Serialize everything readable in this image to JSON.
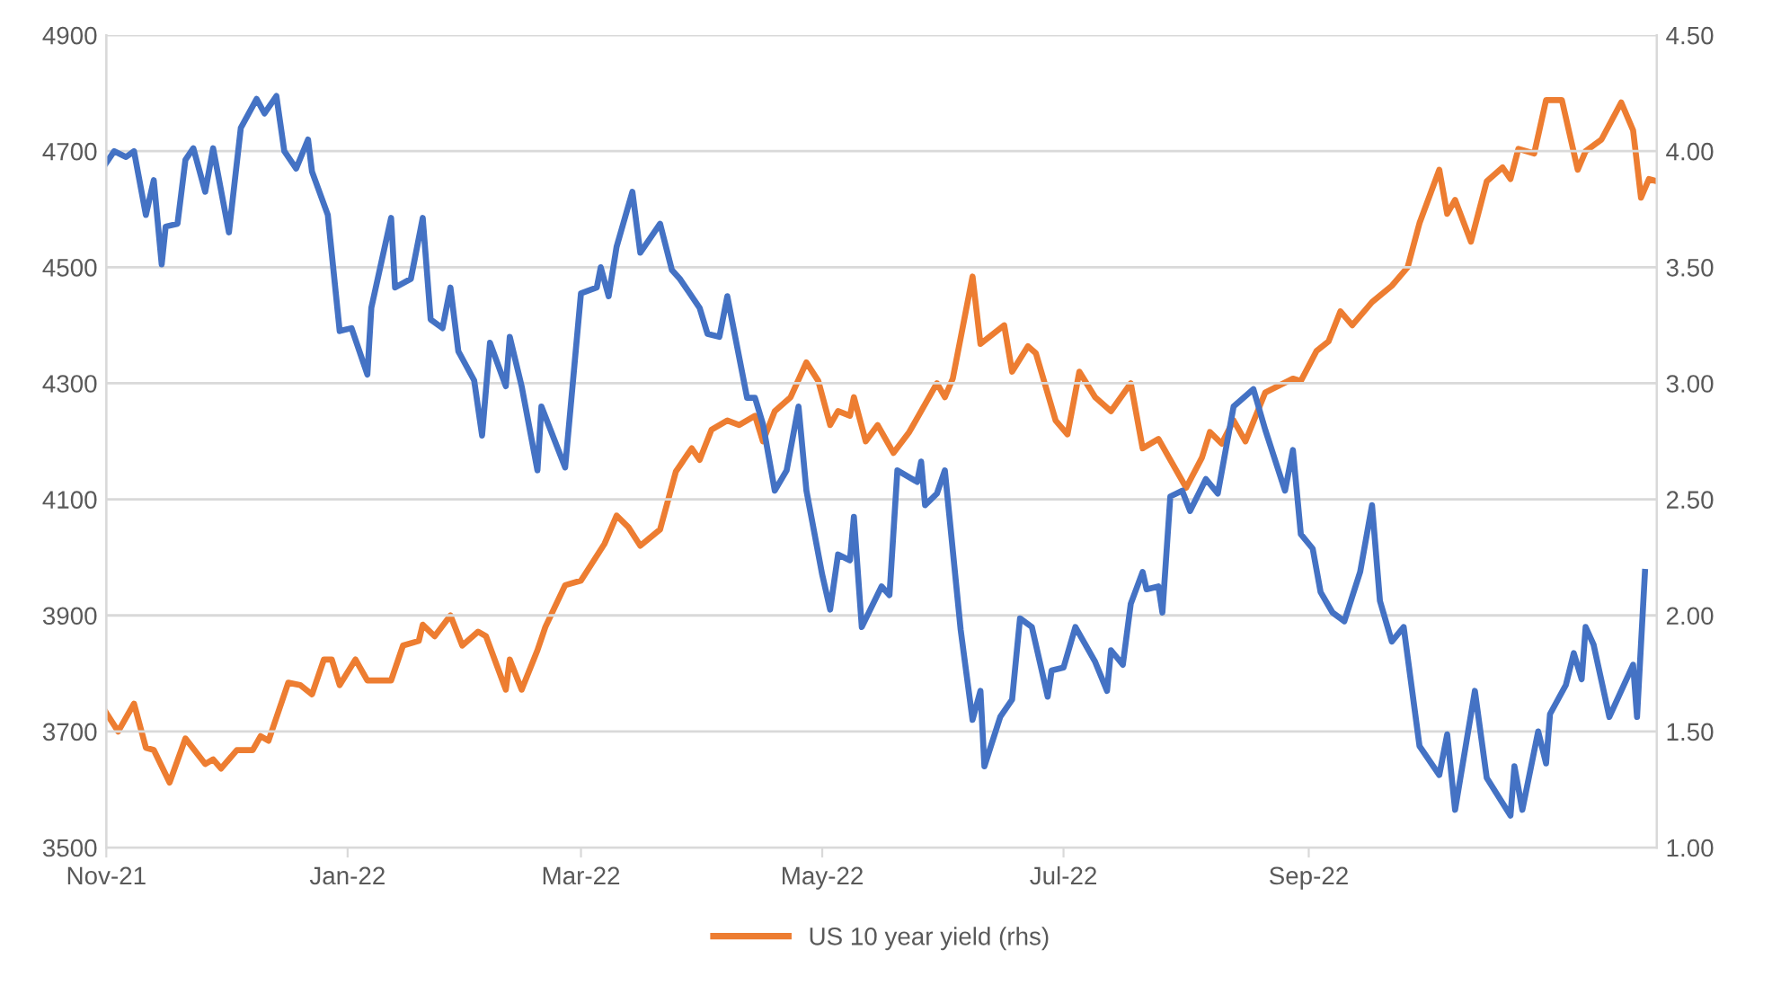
{
  "chart_data": {
    "type": "line",
    "legend": "bottom",
    "grid": "y",
    "line_style": "solid",
    "marker": "none",
    "xlim": [
      "2021-11-01",
      "2022-11-28"
    ],
    "xticks": [
      {
        "value": "2021-11-01",
        "label": "Nov-21"
      },
      {
        "value": "2022-01-01",
        "label": "Jan-22"
      },
      {
        "value": "2022-03-01",
        "label": "Mar-22"
      },
      {
        "value": "2022-05-01",
        "label": "May-22"
      },
      {
        "value": "2022-07-01",
        "label": "Jul-22"
      },
      {
        "value": "2022-09-01",
        "label": "Sep-22"
      }
    ],
    "ylim": [
      3500,
      4900
    ],
    "yticks": [
      3500,
      3700,
      3900,
      4100,
      4300,
      4500,
      4700,
      4900
    ],
    "y2lim": [
      1,
      4.5
    ],
    "y2ticks": [
      {
        "value": 1,
        "label": "1.00"
      },
      {
        "value": 1.5,
        "label": "1.50"
      },
      {
        "value": 2,
        "label": "2.00"
      },
      {
        "value": 2.5,
        "label": "2.50"
      },
      {
        "value": 3,
        "label": "3.00"
      },
      {
        "value": 3.5,
        "label": "3.50"
      },
      {
        "value": 4,
        "label": "4.00"
      },
      {
        "value": 4.5,
        "label": "4.50"
      }
    ],
    "series": [
      {
        "color": "#4472c4",
        "x": [
          "2021-11-01",
          "2021-11-03",
          "2021-11-06",
          "2021-11-08",
          "2021-11-11",
          "2021-11-13",
          "2021-11-15",
          "2021-11-16",
          "2021-11-19",
          "2021-11-21",
          "2021-11-23",
          "2021-11-26",
          "2021-11-28",
          "2021-12-02",
          "2021-12-05",
          "2021-12-09",
          "2021-12-11",
          "2021-12-14",
          "2021-12-16",
          "2021-12-19",
          "2021-12-22",
          "2021-12-23",
          "2021-12-27",
          "2021-12-30",
          "2022-01-02",
          "2022-01-06",
          "2022-01-07",
          "2022-01-12",
          "2022-01-13",
          "2022-01-17",
          "2022-01-20",
          "2022-01-22",
          "2022-01-25",
          "2022-01-27",
          "2022-01-29",
          "2022-02-02",
          "2022-02-04",
          "2022-02-06",
          "2022-02-10",
          "2022-02-11",
          "2022-02-14",
          "2022-02-18",
          "2022-02-19",
          "2022-02-25",
          "2022-03-01",
          "2022-03-05",
          "2022-03-06",
          "2022-03-08",
          "2022-03-10",
          "2022-03-14",
          "2022-03-16",
          "2022-03-21",
          "2022-03-24",
          "2022-03-26",
          "2022-03-31",
          "2022-04-02",
          "2022-04-05",
          "2022-04-07",
          "2022-04-12",
          "2022-04-14",
          "2022-04-16",
          "2022-04-19",
          "2022-04-22",
          "2022-04-25",
          "2022-04-27",
          "2022-05-01",
          "2022-05-03",
          "2022-05-05",
          "2022-05-08",
          "2022-05-09",
          "2022-05-11",
          "2022-05-16",
          "2022-05-18",
          "2022-05-20",
          "2022-05-25",
          "2022-05-26",
          "2022-05-27",
          "2022-05-30",
          "2022-06-01",
          "2022-06-05",
          "2022-06-08",
          "2022-06-10",
          "2022-06-11",
          "2022-06-15",
          "2022-06-18",
          "2022-06-20",
          "2022-06-23",
          "2022-06-27",
          "2022-06-28",
          "2022-07-01",
          "2022-07-04",
          "2022-07-09",
          "2022-07-12",
          "2022-07-13",
          "2022-07-16",
          "2022-07-18",
          "2022-07-21",
          "2022-07-22",
          "2022-07-25",
          "2022-07-26",
          "2022-07-28",
          "2022-07-31",
          "2022-08-02",
          "2022-08-06",
          "2022-08-09",
          "2022-08-13",
          "2022-08-18",
          "2022-08-21",
          "2022-08-26",
          "2022-08-28",
          "2022-08-30",
          "2022-09-02",
          "2022-09-04",
          "2022-09-07",
          "2022-09-10",
          "2022-09-14",
          "2022-09-17",
          "2022-09-19",
          "2022-09-22",
          "2022-09-25",
          "2022-09-29",
          "2022-10-04",
          "2022-10-06",
          "2022-10-08",
          "2022-10-13",
          "2022-10-16",
          "2022-10-22",
          "2022-10-23",
          "2022-10-25",
          "2022-10-29",
          "2022-10-31",
          "2022-11-01",
          "2022-11-05",
          "2022-11-07",
          "2022-11-09",
          "2022-11-10",
          "2022-11-12",
          "2022-11-16",
          "2022-11-21",
          "2022-11-22",
          "2022-11-23",
          "2022-11-25"
        ],
        "values": [
          4680,
          4700,
          4690,
          4700,
          4590,
          4650,
          4505,
          4570,
          4575,
          4685,
          4705,
          4630,
          4705,
          4560,
          4740,
          4790,
          4765,
          4795,
          4700,
          4670,
          4720,
          4665,
          4590,
          4390,
          4395,
          4315,
          4430,
          4585,
          4465,
          4480,
          4585,
          4410,
          4395,
          4465,
          4355,
          4305,
          4210,
          4370,
          4295,
          4380,
          4295,
          4150,
          4260,
          4155,
          4455,
          4465,
          4500,
          4450,
          4535,
          4630,
          4525,
          4575,
          4495,
          4480,
          4430,
          4385,
          4380,
          4450,
          4275,
          4275,
          4230,
          4115,
          4150,
          4260,
          4115,
          3970,
          3910,
          4005,
          3995,
          4070,
          3880,
          3950,
          3935,
          4150,
          4130,
          4165,
          4090,
          4110,
          4150,
          3875,
          3720,
          3770,
          3640,
          3725,
          3755,
          3895,
          3880,
          3760,
          3805,
          3810,
          3880,
          3820,
          3770,
          3840,
          3815,
          3920,
          3975,
          3945,
          3950,
          3905,
          4105,
          4115,
          4080,
          4135,
          4110,
          4260,
          4290,
          4220,
          4115,
          4185,
          4040,
          4015,
          3940,
          3905,
          3890,
          3975,
          4090,
          3925,
          3855,
          3880,
          3675,
          3625,
          3695,
          3565,
          3770,
          3620,
          3555,
          3640,
          3565,
          3700,
          3645,
          3730,
          3780,
          3835,
          3790,
          3880,
          3850,
          3725,
          3800,
          3815,
          3725,
          3975
        ]
      },
      {
        "name": "US 10 year yield (rhs)",
        "color": "#ed7d31",
        "axis": "y2",
        "x": [
          "2021-11-01",
          "2021-11-04",
          "2021-11-08",
          "2021-11-11",
          "2021-11-13",
          "2021-11-17",
          "2021-11-21",
          "2021-11-26",
          "2021-11-28",
          "2021-11-30",
          "2021-12-04",
          "2021-12-08",
          "2021-12-10",
          "2021-12-12",
          "2021-12-17",
          "2021-12-20",
          "2021-12-23",
          "2021-12-26",
          "2021-12-28",
          "2021-12-30",
          "2022-01-03",
          "2022-01-06",
          "2022-01-12",
          "2022-01-15",
          "2022-01-19",
          "2022-01-20",
          "2022-01-23",
          "2022-01-27",
          "2022-01-30",
          "2022-02-03",
          "2022-02-05",
          "2022-02-10",
          "2022-02-11",
          "2022-02-14",
          "2022-02-18",
          "2022-02-20",
          "2022-02-25",
          "2022-03-01",
          "2022-03-07",
          "2022-03-10",
          "2022-03-13",
          "2022-03-16",
          "2022-03-21",
          "2022-03-25",
          "2022-03-29",
          "2022-03-31",
          "2022-04-03",
          "2022-04-07",
          "2022-04-10",
          "2022-04-14",
          "2022-04-16",
          "2022-04-19",
          "2022-04-23",
          "2022-04-27",
          "2022-04-30",
          "2022-05-03",
          "2022-05-05",
          "2022-05-08",
          "2022-05-09",
          "2022-05-12",
          "2022-05-15",
          "2022-05-19",
          "2022-05-23",
          "2022-05-30",
          "2022-06-01",
          "2022-06-03",
          "2022-06-08",
          "2022-06-10",
          "2022-06-16",
          "2022-06-18",
          "2022-06-22",
          "2022-06-24",
          "2022-06-29",
          "2022-07-02",
          "2022-07-05",
          "2022-07-09",
          "2022-07-13",
          "2022-07-18",
          "2022-07-21",
          "2022-07-25",
          "2022-08-01",
          "2022-08-05",
          "2022-08-07",
          "2022-08-10",
          "2022-08-13",
          "2022-08-16",
          "2022-08-21",
          "2022-08-28",
          "2022-08-30",
          "2022-09-03",
          "2022-09-06",
          "2022-09-09",
          "2022-09-12",
          "2022-09-17",
          "2022-09-22",
          "2022-09-26",
          "2022-09-29",
          "2022-10-04",
          "2022-10-06",
          "2022-10-08",
          "2022-10-12",
          "2022-10-16",
          "2022-10-20",
          "2022-10-22",
          "2022-10-24",
          "2022-10-28",
          "2022-10-31",
          "2022-11-04",
          "2022-11-08",
          "2022-11-10",
          "2022-11-14",
          "2022-11-19",
          "2022-11-22",
          "2022-11-24",
          "2022-11-26",
          "2022-11-28"
        ],
        "values": [
          1.58,
          1.5,
          1.62,
          1.43,
          1.42,
          1.28,
          1.47,
          1.36,
          1.38,
          1.34,
          1.42,
          1.42,
          1.48,
          1.46,
          1.71,
          1.7,
          1.66,
          1.81,
          1.81,
          1.7,
          1.81,
          1.72,
          1.72,
          1.87,
          1.89,
          1.96,
          1.91,
          2.0,
          1.87,
          1.93,
          1.91,
          1.68,
          1.81,
          1.68,
          1.85,
          1.95,
          2.13,
          2.15,
          2.31,
          2.43,
          2.38,
          2.3,
          2.37,
          2.62,
          2.72,
          2.67,
          2.8,
          2.84,
          2.82,
          2.86,
          2.75,
          2.88,
          2.94,
          3.09,
          3.01,
          2.82,
          2.88,
          2.86,
          2.94,
          2.75,
          2.82,
          2.7,
          2.79,
          3.0,
          2.94,
          3.02,
          3.46,
          3.17,
          3.25,
          3.05,
          3.16,
          3.13,
          2.84,
          2.78,
          3.05,
          2.94,
          2.88,
          3.0,
          2.72,
          2.76,
          2.55,
          2.68,
          2.79,
          2.74,
          2.84,
          2.75,
          2.96,
          3.02,
          3.01,
          3.14,
          3.18,
          3.31,
          3.25,
          3.35,
          3.42,
          3.5,
          3.69,
          3.92,
          3.73,
          3.79,
          3.61,
          3.87,
          3.93,
          3.88,
          4.01,
          3.99,
          4.22,
          4.22,
          3.92,
          4.0,
          4.05,
          4.21,
          4.09,
          3.8,
          3.88,
          3.87
        ]
      }
    ]
  }
}
